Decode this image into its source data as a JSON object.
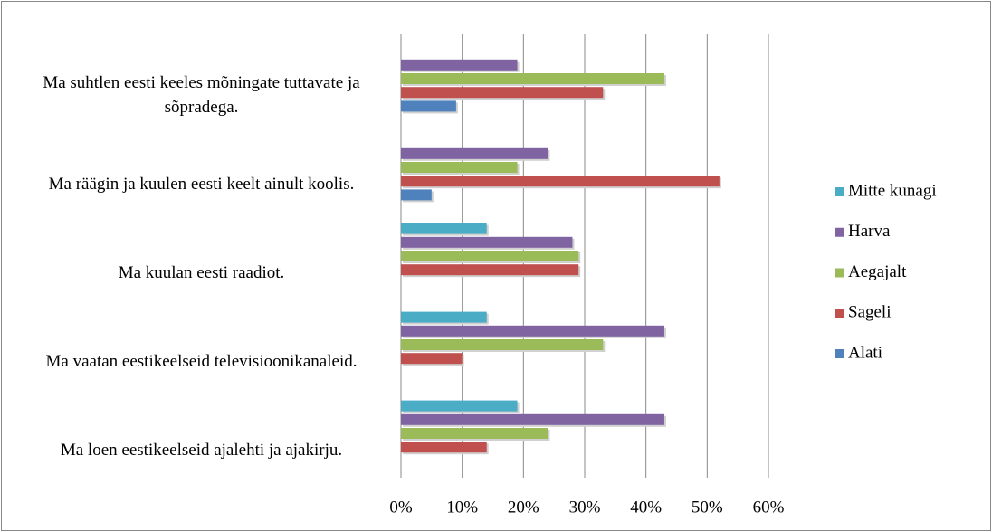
{
  "chart_data": {
    "type": "barh",
    "categories": [
      "Ma suhtlen eesti keeles mõningate tuttavate ja sõpradega.",
      "Ma räägin ja kuulen eesti keelt ainult koolis.",
      "Ma kuulan eesti raadiot.",
      "Ma vaatan eestikeelseid televisioonikanaleid.",
      "Ma loen eestikeelseid ajalehti ja ajakirju."
    ],
    "series": [
      {
        "name": "Alati",
        "color": "#4f81bd",
        "values": [
          9,
          5,
          0,
          0,
          0
        ]
      },
      {
        "name": "Sageli",
        "color": "#c0504d",
        "values": [
          33,
          52,
          29,
          10,
          14
        ]
      },
      {
        "name": "Aegajalt",
        "color": "#9bbb59",
        "values": [
          43,
          19,
          29,
          33,
          24
        ]
      },
      {
        "name": "Harva",
        "color": "#8064a2",
        "values": [
          19,
          24,
          28,
          43,
          43
        ]
      },
      {
        "name": "Mitte kunagi",
        "color": "#4bacc6",
        "values": [
          0,
          0,
          14,
          14,
          19
        ]
      }
    ],
    "xlim": [
      0,
      60
    ],
    "xticks": [
      {
        "value": 0,
        "label": "0%"
      },
      {
        "value": 10,
        "label": "10%"
      },
      {
        "value": 20,
        "label": "20%"
      },
      {
        "value": 30,
        "label": "30%"
      },
      {
        "value": 40,
        "label": "40%"
      },
      {
        "value": 50,
        "label": "50%"
      },
      {
        "value": 60,
        "label": "60%"
      }
    ],
    "grid": true,
    "legend": "right"
  }
}
